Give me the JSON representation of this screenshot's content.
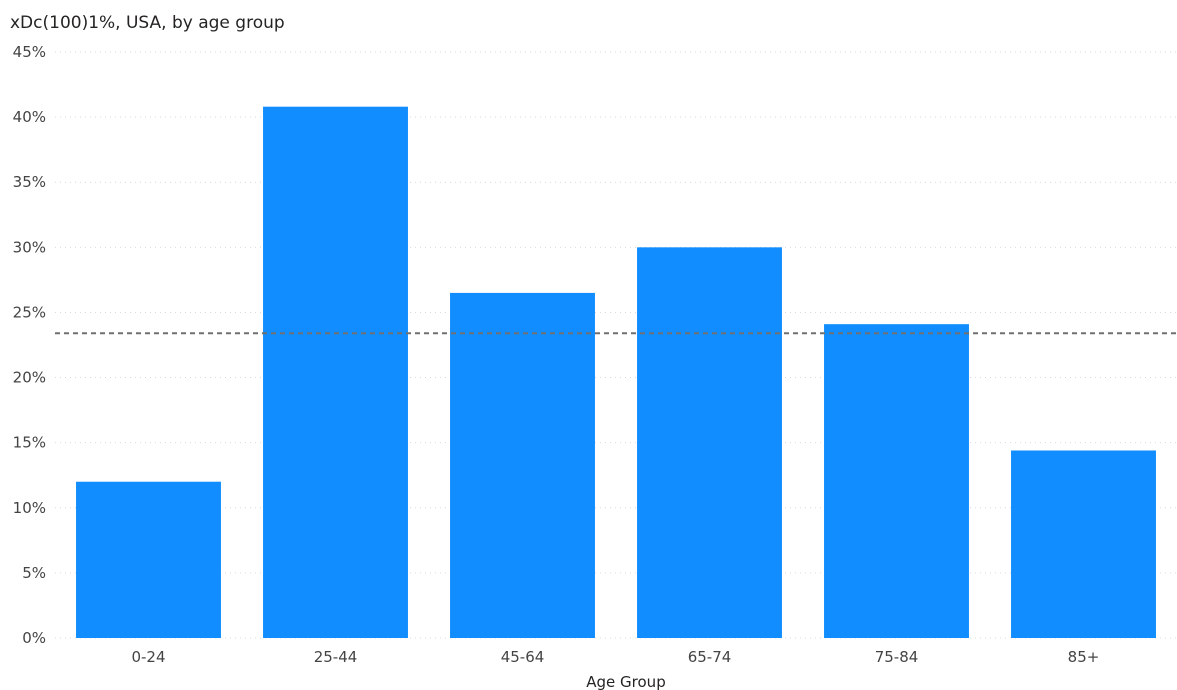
{
  "chart_data": {
    "type": "bar",
    "title": "xDc(100)1%, USA, by age group",
    "xlabel": "Age Group",
    "ylabel": "",
    "categories": [
      "0-24",
      "25-44",
      "45-64",
      "65-74",
      "75-84",
      "85+"
    ],
    "values": [
      12.0,
      40.8,
      26.5,
      30.0,
      24.1,
      14.4
    ],
    "ylim": [
      0,
      45
    ],
    "yticks": [
      0,
      5,
      10,
      15,
      20,
      25,
      30,
      35,
      40,
      45
    ],
    "ytick_labels": [
      "0%",
      "5%",
      "10%",
      "15%",
      "20%",
      "25%",
      "30%",
      "35%",
      "40%",
      "45%"
    ],
    "reference_line": {
      "value": 23.4,
      "style": "dashed"
    },
    "grid": true,
    "legend": "none",
    "colors": {
      "bar": "#118DFF",
      "grid": "#D9D9D9",
      "reference_line": "#707070"
    }
  }
}
